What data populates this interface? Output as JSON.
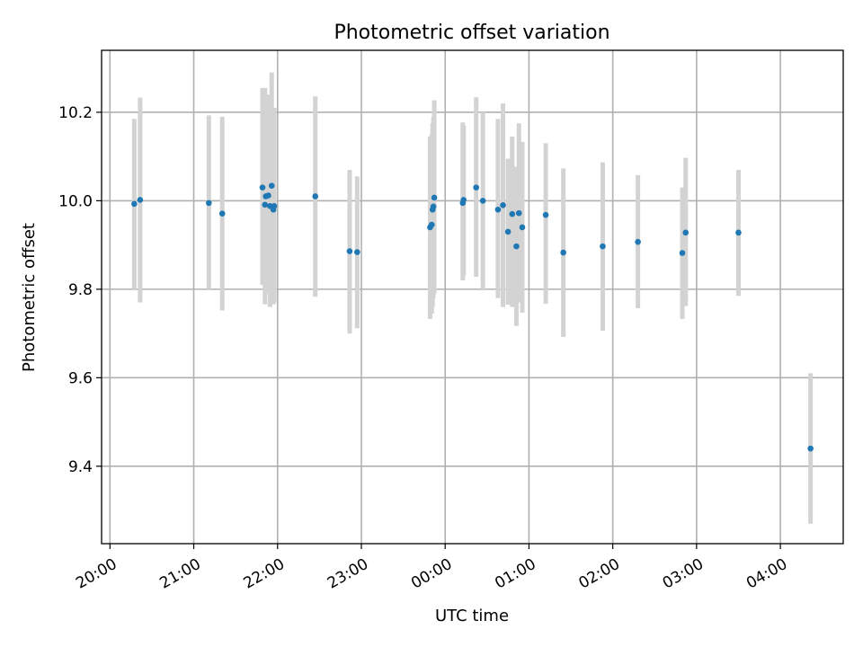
{
  "chart_data": {
    "type": "scatter",
    "title": "Photometric offset variation",
    "xlabel": "UTC time",
    "ylabel": "Photometric offset",
    "xlim": [
      -0.1,
      8.75
    ],
    "ylim": [
      9.225,
      10.34
    ],
    "x_tick_values": [
      0,
      1,
      2,
      3,
      4,
      5,
      6,
      7,
      8
    ],
    "x_tick_labels": [
      "20:00",
      "21:00",
      "22:00",
      "23:00",
      "00:00",
      "01:00",
      "02:00",
      "03:00",
      "04:00"
    ],
    "y_tick_values": [
      9.4,
      9.6,
      9.8,
      10.0,
      10.2
    ],
    "y_tick_labels": [
      "9.4",
      "9.6",
      "9.8",
      "10.0",
      "10.2"
    ],
    "grid": true,
    "series": [
      {
        "name": "Photometric offset",
        "color": "#1f77b4",
        "errorbar_color": "#d3d3d3",
        "points": [
          {
            "x": 0.29,
            "y": 9.993,
            "ylo": 9.8,
            "yhi": 10.185
          },
          {
            "x": 0.36,
            "y": 10.002,
            "ylo": 9.77,
            "yhi": 10.233
          },
          {
            "x": 1.18,
            "y": 9.995,
            "ylo": 9.8,
            "yhi": 10.193
          },
          {
            "x": 1.34,
            "y": 9.971,
            "ylo": 9.752,
            "yhi": 10.19
          },
          {
            "x": 1.82,
            "y": 10.03,
            "ylo": 9.81,
            "yhi": 10.255
          },
          {
            "x": 1.85,
            "y": 9.991,
            "ylo": 9.766,
            "yhi": 10.255
          },
          {
            "x": 1.86,
            "y": 10.01,
            "ylo": 9.79,
            "yhi": 10.23
          },
          {
            "x": 1.89,
            "y": 10.012,
            "ylo": 9.79,
            "yhi": 10.24
          },
          {
            "x": 1.91,
            "y": 9.988,
            "ylo": 9.76,
            "yhi": 10.23
          },
          {
            "x": 1.93,
            "y": 10.034,
            "ylo": 9.79,
            "yhi": 10.29
          },
          {
            "x": 1.95,
            "y": 9.98,
            "ylo": 9.766,
            "yhi": 10.21
          },
          {
            "x": 1.96,
            "y": 9.988,
            "ylo": 9.77,
            "yhi": 10.21
          },
          {
            "x": 2.45,
            "y": 10.01,
            "ylo": 9.783,
            "yhi": 10.236
          },
          {
            "x": 2.86,
            "y": 9.886,
            "ylo": 9.7,
            "yhi": 10.07
          },
          {
            "x": 2.95,
            "y": 9.884,
            "ylo": 9.712,
            "yhi": 10.055
          },
          {
            "x": 3.82,
            "y": 9.94,
            "ylo": 9.733,
            "yhi": 10.145
          },
          {
            "x": 3.84,
            "y": 9.946,
            "ylo": 9.745,
            "yhi": 10.15
          },
          {
            "x": 3.85,
            "y": 9.98,
            "ylo": 9.76,
            "yhi": 10.175
          },
          {
            "x": 3.86,
            "y": 9.987,
            "ylo": 9.78,
            "yhi": 10.19
          },
          {
            "x": 3.87,
            "y": 10.007,
            "ylo": 9.79,
            "yhi": 10.227
          },
          {
            "x": 4.21,
            "y": 9.995,
            "ylo": 9.82,
            "yhi": 10.177
          },
          {
            "x": 4.22,
            "y": 10.002,
            "ylo": 9.83,
            "yhi": 10.17
          },
          {
            "x": 4.37,
            "y": 10.03,
            "ylo": 9.828,
            "yhi": 10.234
          },
          {
            "x": 4.45,
            "y": 10.0,
            "ylo": 9.8,
            "yhi": 10.2
          },
          {
            "x": 4.63,
            "y": 9.98,
            "ylo": 9.78,
            "yhi": 10.185
          },
          {
            "x": 4.69,
            "y": 9.99,
            "ylo": 9.76,
            "yhi": 10.22
          },
          {
            "x": 4.75,
            "y": 9.93,
            "ylo": 9.765,
            "yhi": 10.095
          },
          {
            "x": 4.8,
            "y": 9.97,
            "ylo": 9.76,
            "yhi": 10.145
          },
          {
            "x": 4.85,
            "y": 9.897,
            "ylo": 9.717,
            "yhi": 10.077
          },
          {
            "x": 4.88,
            "y": 9.972,
            "ylo": 9.77,
            "yhi": 10.175
          },
          {
            "x": 4.92,
            "y": 9.94,
            "ylo": 9.747,
            "yhi": 10.133
          },
          {
            "x": 5.2,
            "y": 9.968,
            "ylo": 9.767,
            "yhi": 10.13
          },
          {
            "x": 5.41,
            "y": 9.883,
            "ylo": 9.692,
            "yhi": 10.073
          },
          {
            "x": 5.88,
            "y": 9.897,
            "ylo": 9.706,
            "yhi": 10.087
          },
          {
            "x": 6.3,
            "y": 9.907,
            "ylo": 9.757,
            "yhi": 10.058
          },
          {
            "x": 6.83,
            "y": 9.882,
            "ylo": 9.733,
            "yhi": 10.03
          },
          {
            "x": 6.87,
            "y": 9.928,
            "ylo": 9.762,
            "yhi": 10.097
          },
          {
            "x": 7.5,
            "y": 9.928,
            "ylo": 9.785,
            "yhi": 10.07
          },
          {
            "x": 8.36,
            "y": 9.44,
            "ylo": 9.27,
            "yhi": 9.61
          }
        ]
      }
    ]
  }
}
